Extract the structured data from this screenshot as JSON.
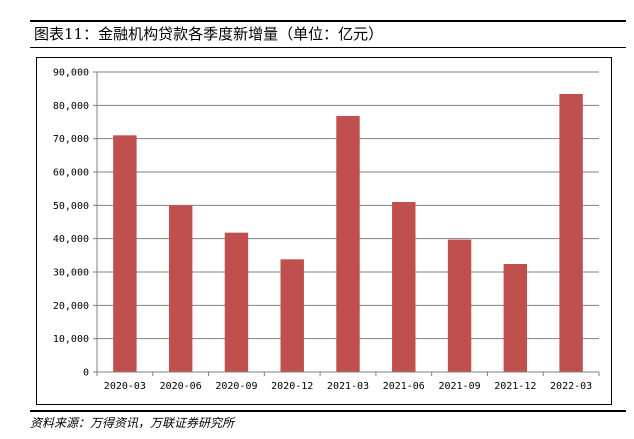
{
  "figure": {
    "title": "图表11：金融机构贷款各季度新增量（单位：亿元）",
    "source": "资料来源：万得资讯，万联证券研究所"
  },
  "colors": {
    "bar": "#C0504D",
    "grid": "#808080",
    "axis": "#808080"
  },
  "chart_data": {
    "type": "bar",
    "title": "",
    "xlabel": "",
    "ylabel": "",
    "categories": [
      "2020-03",
      "2020-06",
      "2020-09",
      "2020-12",
      "2021-03",
      "2021-06",
      "2021-09",
      "2021-12",
      "2022-03"
    ],
    "values": [
      71000,
      50000,
      41800,
      33800,
      76800,
      51000,
      39700,
      32400,
      83400
    ],
    "ylim": [
      0,
      90000
    ],
    "yticks": [
      0,
      10000,
      20000,
      30000,
      40000,
      50000,
      60000,
      70000,
      80000,
      90000
    ],
    "ytick_labels": [
      "0",
      "10,000",
      "20,000",
      "30,000",
      "40,000",
      "50,000",
      "60,000",
      "70,000",
      "80,000",
      "90,000"
    ],
    "grid": true,
    "legend": "none"
  }
}
